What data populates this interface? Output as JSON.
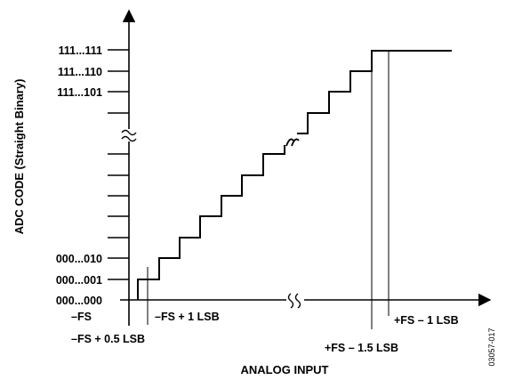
{
  "figure": {
    "figure_code": "03057-017",
    "y_axis_title": "ADC CODE (Straight Binary)",
    "x_axis_title": "ANALOG INPUT",
    "y_tick_labels": {
      "top1": "111...111",
      "top2": "111...110",
      "top3": "111...101",
      "bottom3": "000...010",
      "bottom2": "000...001",
      "bottom1": "000...000"
    },
    "x_labels": {
      "neg_fs": "–FS",
      "neg_fs_half": "–FS + 0.5 LSB",
      "neg_fs_one": "–FS + 1 LSB",
      "pos_fs_onehalf": "+FS – 1.5 LSB",
      "pos_fs_one": "+FS – 1 LSB"
    }
  },
  "colors": {
    "line": "#000000",
    "background": "#ffffff"
  }
}
